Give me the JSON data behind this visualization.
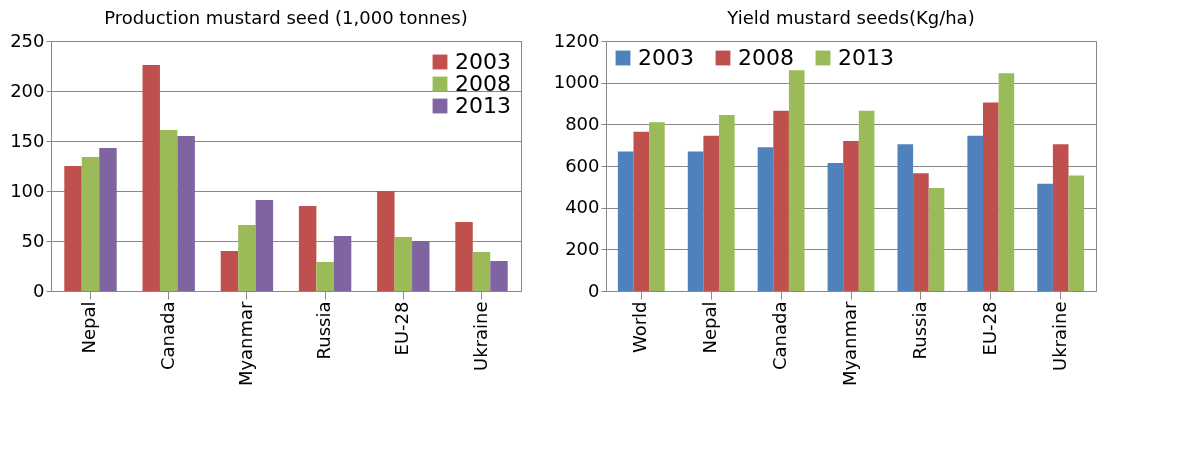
{
  "chart_data": [
    {
      "type": "bar",
      "title": "Production mustard seed (1,000 tonnes)",
      "categories": [
        "Nepal",
        "Canada",
        "Myanmar",
        "Russia",
        "EU-28",
        "Ukraine"
      ],
      "ylim": [
        0,
        250
      ],
      "yticks": [
        0,
        50,
        100,
        150,
        200,
        250
      ],
      "grid": "y",
      "legend": "top right",
      "series": [
        {
          "name": "2003",
          "color": "#c0504d",
          "values": [
            125,
            226,
            40,
            85,
            100,
            69
          ]
        },
        {
          "name": "2008",
          "color": "#9bbb59",
          "values": [
            134,
            161,
            66,
            29,
            54,
            39
          ]
        },
        {
          "name": "2013",
          "color": "#8064a2",
          "values": [
            143,
            155,
            91,
            55,
            50,
            30
          ]
        }
      ]
    },
    {
      "type": "bar",
      "title": "Yield mustard seeds(Kg/ha)",
      "categories": [
        "World",
        "Nepal",
        "Canada",
        "Myanmar",
        "Russia",
        "EU-28",
        "Ukraine"
      ],
      "ylim": [
        0,
        1200
      ],
      "yticks": [
        0,
        200,
        400,
        600,
        800,
        1000,
        1200
      ],
      "grid": "y",
      "legend": "top left",
      "series": [
        {
          "name": "2003",
          "color": "#4f81bd",
          "values": [
            670,
            670,
            690,
            615,
            705,
            745,
            515
          ]
        },
        {
          "name": "2008",
          "color": "#c0504d",
          "values": [
            765,
            745,
            865,
            720,
            565,
            905,
            705
          ]
        },
        {
          "name": "2013",
          "color": "#9bbb59",
          "values": [
            810,
            845,
            1060,
            865,
            495,
            1045,
            555
          ]
        }
      ]
    }
  ]
}
